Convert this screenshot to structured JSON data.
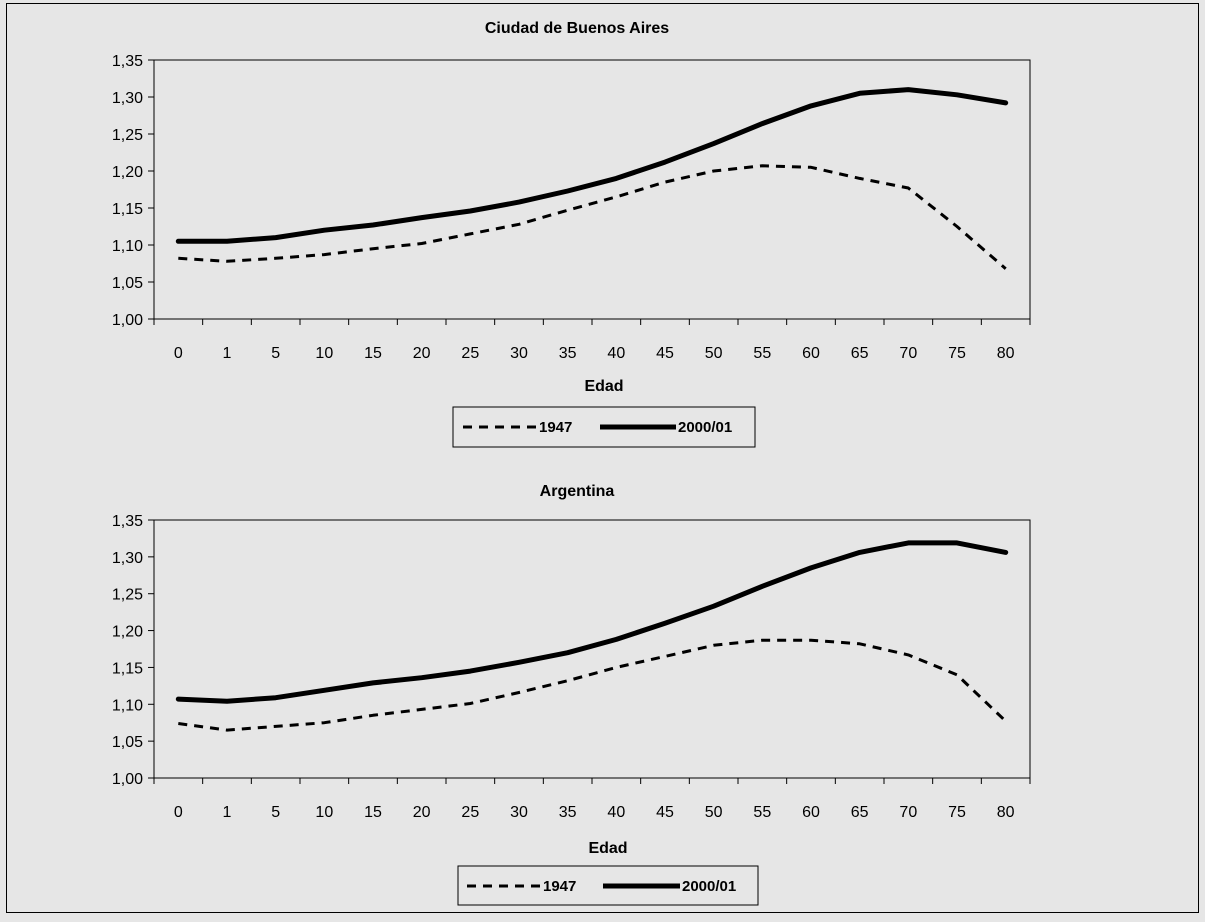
{
  "chart_data": [
    {
      "type": "line",
      "title": "Ciudad de Buenos Aires",
      "xlabel": "Edad",
      "ylabel": "",
      "categories": [
        "0",
        "1",
        "5",
        "10",
        "15",
        "20",
        "25",
        "30",
        "35",
        "40",
        "45",
        "50",
        "55",
        "60",
        "65",
        "70",
        "75",
        "80"
      ],
      "ylim": [
        1.0,
        1.35
      ],
      "yticks": [
        "1,00",
        "1,05",
        "1,10",
        "1,15",
        "1,20",
        "1,25",
        "1,30",
        "1,35"
      ],
      "grid": false,
      "legend": "bottom",
      "series": [
        {
          "name": "1947",
          "style": "dashed",
          "color": "#000000",
          "values": [
            1.082,
            1.078,
            1.082,
            1.087,
            1.095,
            1.102,
            1.115,
            1.128,
            1.147,
            1.165,
            1.185,
            1.2,
            1.207,
            1.205,
            1.19,
            1.177,
            1.125,
            1.068
          ]
        },
        {
          "name": "2000/01",
          "style": "solid",
          "color": "#000000",
          "values": [
            1.105,
            1.105,
            1.11,
            1.12,
            1.127,
            1.137,
            1.146,
            1.158,
            1.173,
            1.19,
            1.212,
            1.237,
            1.264,
            1.288,
            1.305,
            1.31,
            1.303,
            1.292
          ]
        }
      ]
    },
    {
      "type": "line",
      "title": "Argentina",
      "xlabel": "Edad",
      "ylabel": "",
      "categories": [
        "0",
        "1",
        "5",
        "10",
        "15",
        "20",
        "25",
        "30",
        "35",
        "40",
        "45",
        "50",
        "55",
        "60",
        "65",
        "70",
        "75",
        "80"
      ],
      "ylim": [
        1.0,
        1.35
      ],
      "yticks": [
        "1,00",
        "1,05",
        "1,10",
        "1,15",
        "1,20",
        "1,25",
        "1,30",
        "1,35"
      ],
      "grid": false,
      "legend": "bottom",
      "series": [
        {
          "name": "1947",
          "style": "dashed",
          "color": "#000000",
          "values": [
            1.074,
            1.065,
            1.07,
            1.075,
            1.085,
            1.093,
            1.101,
            1.116,
            1.132,
            1.15,
            1.165,
            1.18,
            1.187,
            1.187,
            1.182,
            1.167,
            1.14,
            1.077
          ]
        },
        {
          "name": "2000/01",
          "style": "solid",
          "color": "#000000",
          "values": [
            1.107,
            1.104,
            1.109,
            1.119,
            1.129,
            1.136,
            1.145,
            1.157,
            1.17,
            1.188,
            1.21,
            1.233,
            1.26,
            1.285,
            1.306,
            1.319,
            1.319,
            1.306
          ]
        }
      ]
    }
  ]
}
